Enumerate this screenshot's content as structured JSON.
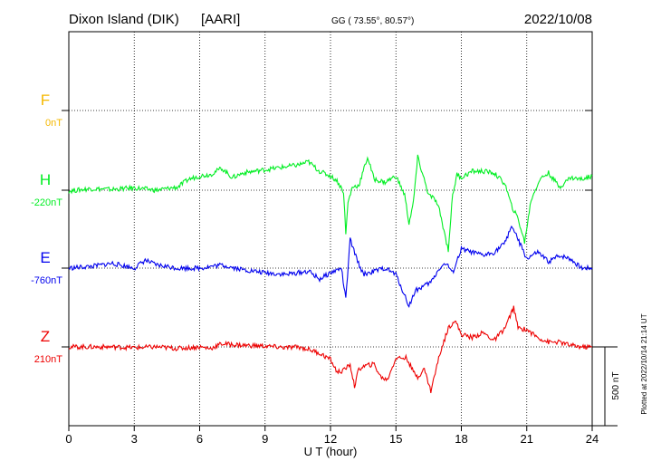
{
  "header": {
    "station": "Dixon Island (DIK)",
    "institute": "[AARI]",
    "coords": "GG ( 73.55°,  80.57°)",
    "date": "2022/10/08"
  },
  "footer": {
    "plotted": "Plotted at 2022/10/14 21:14 UT",
    "scale": "500 nT"
  },
  "chart_data": {
    "type": "line",
    "title": "Dixon Island (DIK)  [AARI]",
    "xlabel": "U T (hour)",
    "xlim": [
      0,
      24
    ],
    "x_ticks": [
      "0",
      "3",
      "6",
      "9",
      "12",
      "15",
      "18",
      "21",
      "24"
    ],
    "grid": true,
    "scale_bar_nT": 500,
    "series": [
      {
        "name": "F",
        "baseline": "0nT",
        "color": "#f5b800",
        "hours": [],
        "values": []
      },
      {
        "name": "H",
        "baseline": "-220nT",
        "color": "#00ee22",
        "hours": [
          0,
          1,
          2,
          3,
          4,
          5,
          5.5,
          6,
          6.5,
          7,
          7.5,
          8,
          9,
          10,
          10.5,
          11,
          11.5,
          12,
          12.3,
          12.6,
          12.7,
          12.8,
          13,
          13.3,
          13.7,
          14,
          14.5,
          15,
          15.4,
          15.6,
          15.8,
          16,
          16.5,
          16.8,
          17,
          17.4,
          17.6,
          17.8,
          18,
          18.5,
          19,
          19.5,
          20,
          20.3,
          20.6,
          20.9,
          21.2,
          21.6,
          22,
          22.5,
          23,
          23.5,
          24
        ],
        "values": [
          -225,
          -210,
          -215,
          -205,
          -220,
          -200,
          -150,
          -130,
          -120,
          -80,
          -140,
          -110,
          -90,
          -70,
          -60,
          -40,
          -100,
          -130,
          -160,
          -230,
          -500,
          -300,
          -200,
          -190,
          -10,
          -150,
          -170,
          -130,
          -250,
          -430,
          -300,
          -10,
          -250,
          -280,
          -350,
          -600,
          -250,
          -120,
          -140,
          -100,
          -100,
          -110,
          -180,
          -320,
          -400,
          -550,
          -280,
          -150,
          -110,
          -200,
          -140,
          -150,
          -130
        ]
      },
      {
        "name": "E",
        "baseline": "-760nT",
        "color": "#0000ee",
        "hours": [
          0,
          1,
          2,
          3,
          3.5,
          4,
          5,
          6,
          7,
          8,
          9,
          10,
          11,
          11.5,
          12,
          12.5,
          12.7,
          12.9,
          13.2,
          13.5,
          14,
          14.5,
          15,
          15.3,
          15.6,
          15.9,
          16.2,
          16.6,
          17,
          17.3,
          17.6,
          18,
          19,
          19.5,
          20,
          20.3,
          20.6,
          21,
          21.5,
          22,
          22.5,
          23,
          23.5,
          24
        ],
        "values": [
          -760,
          -750,
          -730,
          -760,
          -710,
          -740,
          -760,
          -760,
          -740,
          -770,
          -790,
          -800,
          -780,
          -830,
          -790,
          -760,
          -960,
          -580,
          -700,
          -800,
          -780,
          -760,
          -800,
          -900,
          -1000,
          -900,
          -880,
          -850,
          -760,
          -730,
          -790,
          -640,
          -680,
          -660,
          -600,
          -490,
          -580,
          -700,
          -660,
          -720,
          -680,
          -700,
          -760,
          -760
        ]
      },
      {
        "name": "Z",
        "baseline": "210nT",
        "color": "#ee0000",
        "hours": [
          0,
          1,
          2,
          3,
          4,
          5,
          6,
          6.5,
          7,
          8,
          9,
          10,
          10.5,
          11,
          11.5,
          12,
          12.3,
          12.6,
          12.9,
          13.1,
          13.3,
          13.6,
          14,
          14.3,
          14.6,
          15,
          15.5,
          15.8,
          16,
          16.3,
          16.6,
          17,
          17.4,
          17.7,
          18,
          18.5,
          19,
          19.5,
          20,
          20.4,
          20.6,
          21,
          21.5,
          22,
          22.5,
          23,
          23.5,
          24
        ],
        "values": [
          210,
          210,
          210,
          205,
          210,
          200,
          210,
          200,
          230,
          220,
          215,
          205,
          210,
          195,
          170,
          130,
          50,
          60,
          100,
          -40,
          70,
          90,
          100,
          20,
          0,
          140,
          140,
          50,
          20,
          70,
          -70,
          160,
          330,
          380,
          290,
          270,
          300,
          250,
          330,
          460,
          330,
          320,
          270,
          240,
          240,
          220,
          210,
          210
        ]
      }
    ]
  }
}
